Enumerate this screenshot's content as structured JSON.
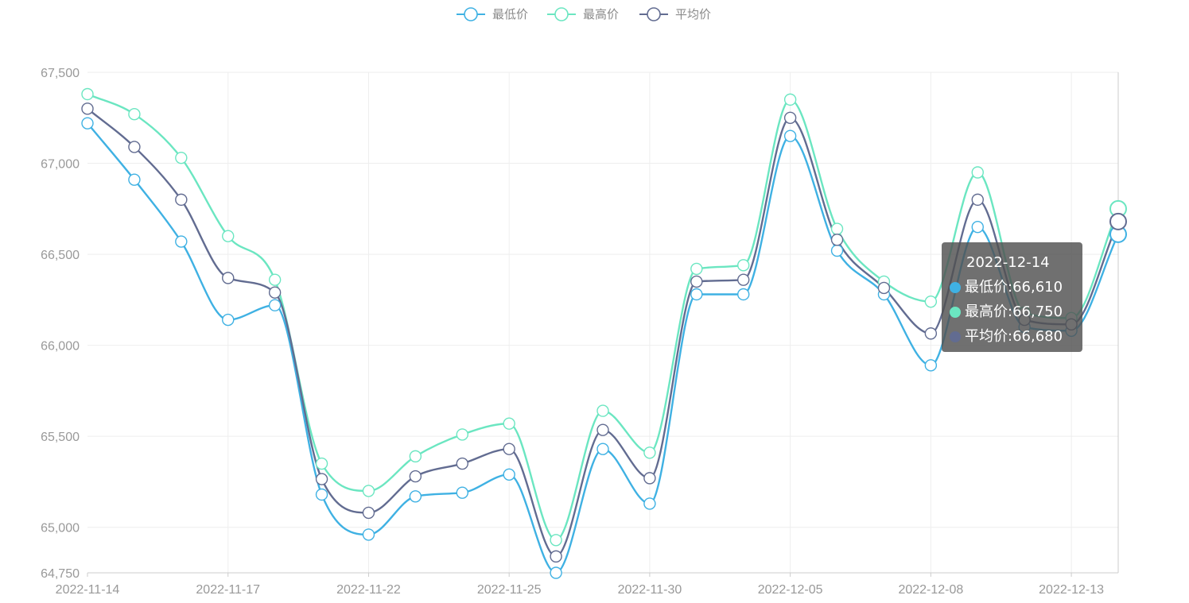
{
  "colors": {
    "low": "#3fb1e3",
    "high": "#6be6c1",
    "avg": "#626c91",
    "grid": "#eeeeee",
    "axis": "#cccccc",
    "tick_text": "#999999",
    "tooltip_bg": "rgba(80,80,80,0.82)"
  },
  "legend": [
    {
      "label": "最低价",
      "color": "#3fb1e3"
    },
    {
      "label": "最高价",
      "color": "#6be6c1"
    },
    {
      "label": "平均价",
      "color": "#626c91"
    }
  ],
  "chart_data": {
    "type": "line",
    "smooth": true,
    "symbol": "empty-circle",
    "x": [
      "2022-11-14",
      "2022-11-15",
      "2022-11-16",
      "2022-11-17",
      "2022-11-18",
      "2022-11-21",
      "2022-11-22",
      "2022-11-23",
      "2022-11-24",
      "2022-11-25",
      "2022-11-28",
      "2022-11-29",
      "2022-11-30",
      "2022-12-01",
      "2022-12-02",
      "2022-12-05",
      "2022-12-06",
      "2022-12-07",
      "2022-12-08",
      "2022-12-09",
      "2022-12-12",
      "2022-12-13",
      "2022-12-14"
    ],
    "x_tick_labels": [
      "2022-11-14",
      "2022-11-17",
      "2022-11-22",
      "2022-11-25",
      "2022-11-30",
      "2022-12-05",
      "2022-12-08",
      "2022-12-13"
    ],
    "ylim": [
      64750,
      67500
    ],
    "y_ticks": [
      64750,
      65000,
      65500,
      66000,
      66500,
      67000,
      67500
    ],
    "y_tick_labels": [
      "64,750",
      "65,000",
      "65,500",
      "66,000",
      "66,500",
      "67,000",
      "67,500"
    ],
    "grid": true,
    "legend_position": "top-center",
    "series": [
      {
        "name": "最低价",
        "key": "low",
        "values": [
          67220,
          66910,
          66570,
          66140,
          66220,
          65180,
          64960,
          65170,
          65190,
          65290,
          64750,
          65430,
          65130,
          66280,
          66280,
          67150,
          66520,
          66280,
          65890,
          66650,
          66100,
          66080,
          66610
        ]
      },
      {
        "name": "最高价",
        "key": "high",
        "values": [
          67380,
          67270,
          67030,
          66600,
          66360,
          65350,
          65200,
          65390,
          65510,
          65570,
          64930,
          65640,
          65410,
          66420,
          66440,
          67350,
          66640,
          66350,
          66240,
          66950,
          66180,
          66150,
          66750
        ]
      },
      {
        "name": "平均价",
        "key": "avg",
        "values": [
          67300,
          67090,
          66800,
          66370,
          66290,
          65265,
          65080,
          65280,
          65350,
          65430,
          64840,
          65535,
          65270,
          66350,
          66360,
          67250,
          66580,
          66315,
          66065,
          66800,
          66140,
          66115,
          66680
        ]
      }
    ],
    "highlighted_index": 22
  },
  "tooltip": {
    "title": "2022-12-14",
    "rows": [
      {
        "label": "最低价",
        "value": "66,610",
        "color": "#3fb1e3"
      },
      {
        "label": "最高价",
        "value": "66,750",
        "color": "#6be6c1"
      },
      {
        "label": "平均价",
        "value": "66,680",
        "color": "#626c91"
      }
    ]
  }
}
